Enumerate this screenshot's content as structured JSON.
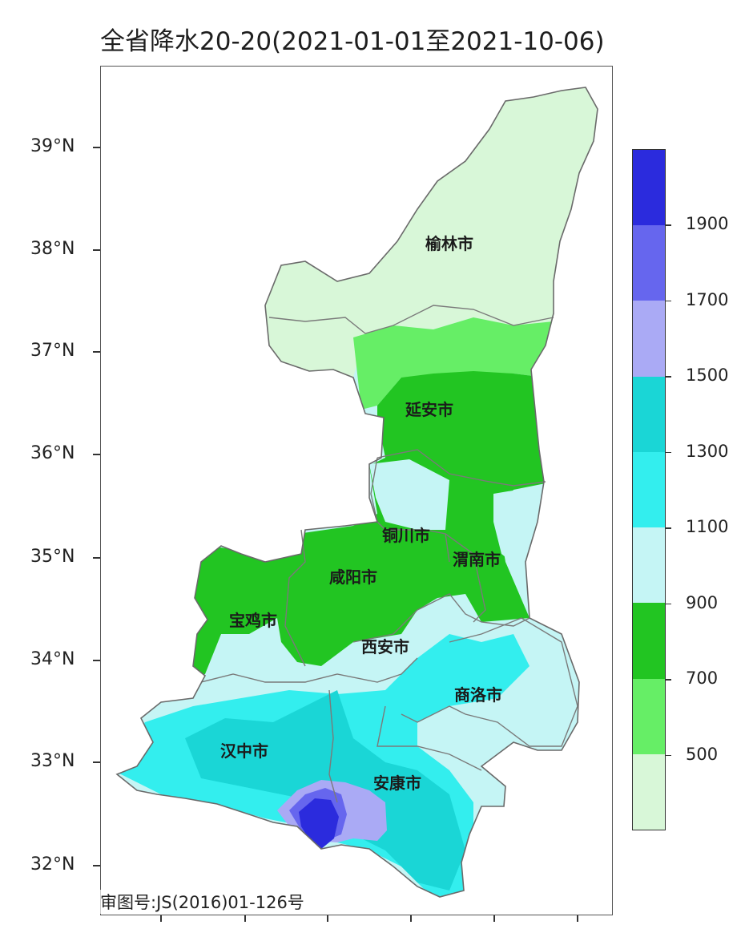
{
  "title": "全省降水20-20(2021-01-01至2021-10-06)",
  "approval_number": "审图号:JS(2016)01-126号",
  "latitude_ticks": [
    "39°N",
    "38°N",
    "37°N",
    "36°N",
    "35°N",
    "34°N",
    "33°N",
    "32°N"
  ],
  "colorbar": {
    "tick_labels": [
      "500",
      "700",
      "900",
      "1100",
      "1300",
      "1500",
      "1700",
      "1900"
    ],
    "colors": [
      "#d8f7d8",
      "#66ee66",
      "#22c522",
      "#c5f5f5",
      "#33eeee",
      "#1ad6d6",
      "#aaaaf5",
      "#6666ee",
      "#2b2bdd"
    ]
  },
  "cities": [
    {
      "name": "榆林市"
    },
    {
      "name": "延安市"
    },
    {
      "name": "铜川市"
    },
    {
      "name": "渭南市"
    },
    {
      "name": "咸阳市"
    },
    {
      "name": "宝鸡市"
    },
    {
      "name": "西安市"
    },
    {
      "name": "商洛市"
    },
    {
      "name": "汉中市"
    },
    {
      "name": "安康市"
    }
  ]
}
